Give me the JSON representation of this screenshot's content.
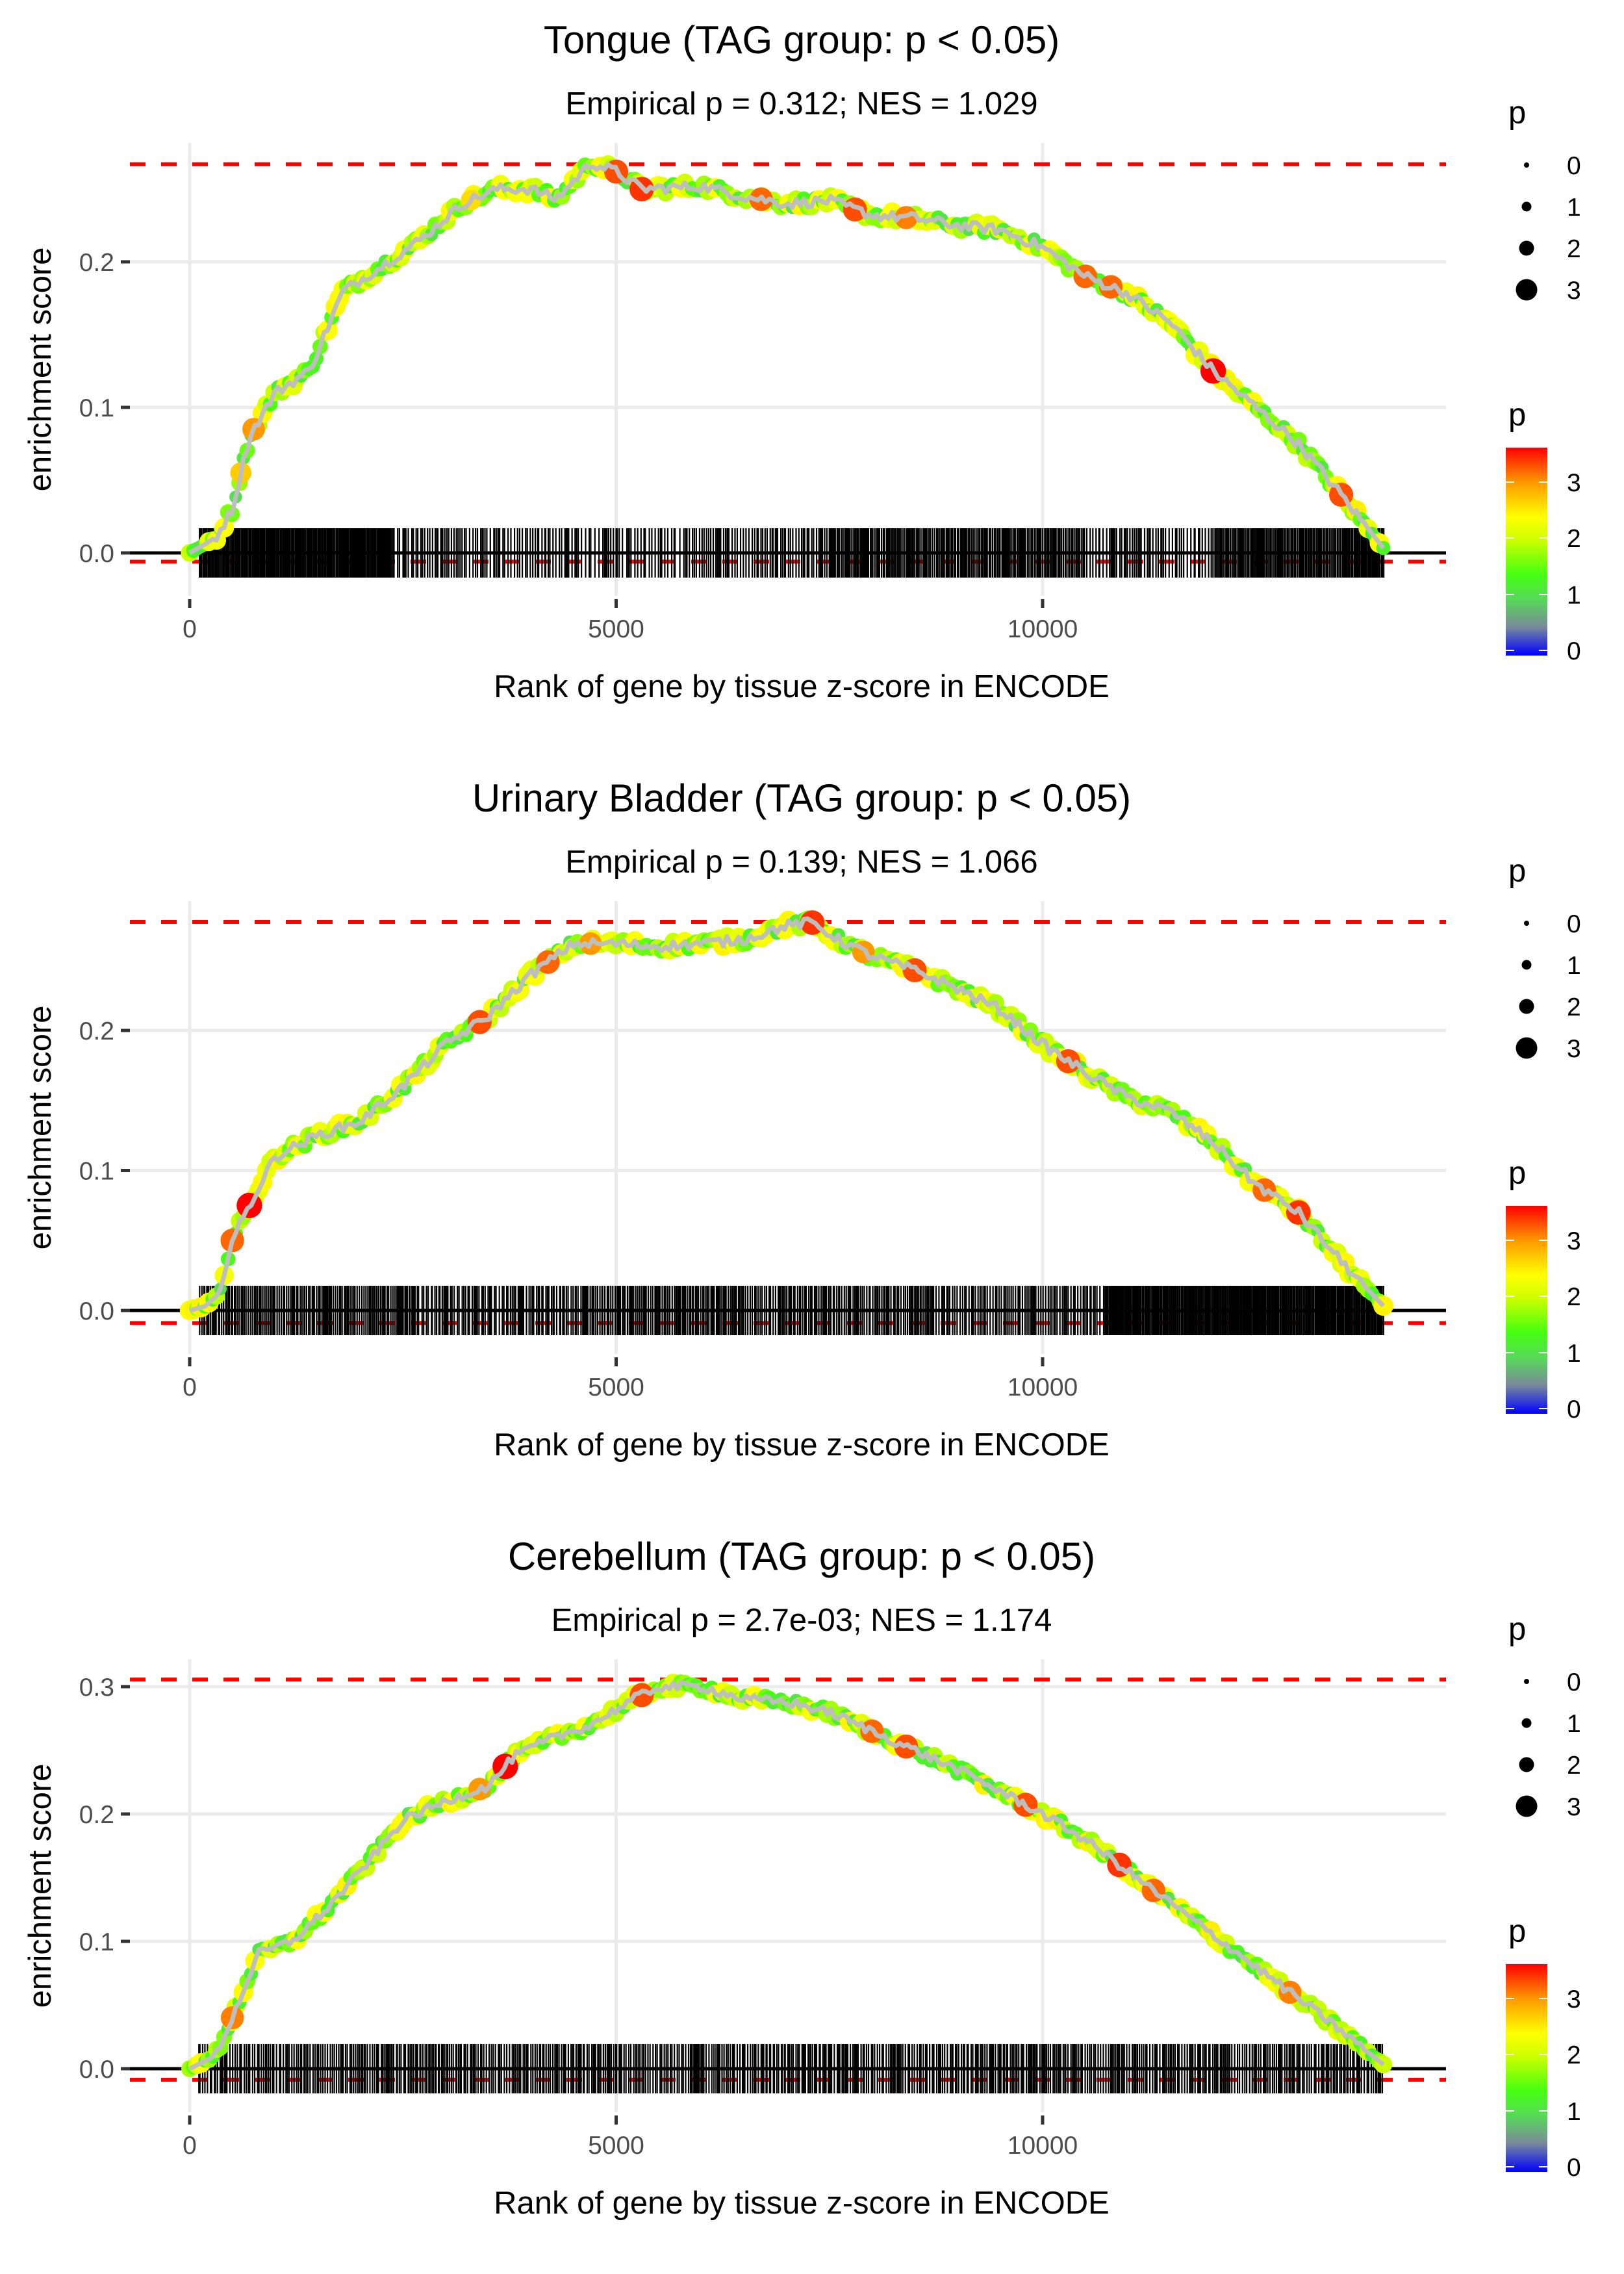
{
  "chart_data": [
    {
      "type": "line",
      "title": "Tongue (TAG group: p < 0.05)",
      "subtitle": "Empirical p = 0.312; NES = 1.029",
      "xlabel": "Rank of gene by tissue z-score in ENCODE",
      "ylabel": "enrichment score",
      "xlim": [
        -1800,
        14900
      ],
      "ylim": [
        -0.03,
        0.28
      ],
      "x_ticks": [
        0,
        5000,
        10000
      ],
      "x_tick_labels": [
        "0",
        "5000",
        "10000"
      ],
      "y_ticks": [
        0.0,
        0.1,
        0.2
      ],
      "y_tick_labels": [
        "0.0",
        "0.1",
        "0.2"
      ],
      "grid": true,
      "es_max": 0.267,
      "es_min": -0.006,
      "n_genes": 14000,
      "curve": [
        [
          0,
          0
        ],
        [
          300,
          0.01
        ],
        [
          500,
          0.03
        ],
        [
          700,
          0.08
        ],
        [
          1000,
          0.11
        ],
        [
          1400,
          0.125
        ],
        [
          1800,
          0.18
        ],
        [
          2200,
          0.195
        ],
        [
          2700,
          0.215
        ],
        [
          3200,
          0.24
        ],
        [
          3600,
          0.25
        ],
        [
          4000,
          0.25
        ],
        [
          4300,
          0.243
        ],
        [
          4700,
          0.268
        ],
        [
          5000,
          0.262
        ],
        [
          5300,
          0.25
        ],
        [
          6000,
          0.252
        ],
        [
          6500,
          0.245
        ],
        [
          7000,
          0.24
        ],
        [
          7500,
          0.242
        ],
        [
          8000,
          0.232
        ],
        [
          8500,
          0.23
        ],
        [
          9000,
          0.225
        ],
        [
          9500,
          0.222
        ],
        [
          10000,
          0.21
        ],
        [
          10500,
          0.19
        ],
        [
          11000,
          0.178
        ],
        [
          11500,
          0.158
        ],
        [
          12000,
          0.125
        ],
        [
          12500,
          0.1
        ],
        [
          13000,
          0.075
        ],
        [
          13500,
          0.04
        ],
        [
          14000,
          0.003
        ]
      ],
      "high_p_points": [
        [
          600,
          2.7
        ],
        [
          750,
          3.0
        ],
        [
          3300,
          2.6
        ],
        [
          5000,
          3.3
        ],
        [
          5300,
          3.4
        ],
        [
          6700,
          3.2
        ],
        [
          7800,
          3.3
        ],
        [
          8400,
          3.1
        ],
        [
          10500,
          3.2
        ],
        [
          10800,
          3.2
        ],
        [
          12000,
          3.6
        ],
        [
          13500,
          3.3
        ]
      ],
      "rug_density": [
        [
          100,
          2400,
          0.9
        ],
        [
          2400,
          4600,
          0.55
        ],
        [
          4600,
          5800,
          0.35
        ],
        [
          5800,
          7500,
          0.6
        ],
        [
          7500,
          10500,
          0.8
        ],
        [
          10500,
          12000,
          0.55
        ],
        [
          12000,
          14000,
          0.85
        ]
      ]
    },
    {
      "type": "line",
      "title": "Urinary Bladder (TAG group: p < 0.05)",
      "subtitle": "Empirical p = 0.139; NES = 1.066",
      "xlabel": "Rank of gene by tissue z-score in ENCODE",
      "ylabel": "enrichment score",
      "xlim": [
        -1800,
        14900
      ],
      "ylim": [
        -0.03,
        0.29
      ],
      "x_ticks": [
        0,
        5000,
        10000
      ],
      "x_tick_labels": [
        "0",
        "5000",
        "10000"
      ],
      "y_ticks": [
        0.0,
        0.1,
        0.2
      ],
      "y_tick_labels": [
        "0.0",
        "0.1",
        "0.2"
      ],
      "grid": true,
      "es_max": 0.2775,
      "es_min": -0.009,
      "n_genes": 14000,
      "curve": [
        [
          0,
          0
        ],
        [
          300,
          0.005
        ],
        [
          500,
          0.05
        ],
        [
          700,
          0.075
        ],
        [
          1000,
          0.11
        ],
        [
          1500,
          0.125
        ],
        [
          2000,
          0.135
        ],
        [
          2500,
          0.16
        ],
        [
          3000,
          0.19
        ],
        [
          3500,
          0.21
        ],
        [
          4000,
          0.24
        ],
        [
          4500,
          0.262
        ],
        [
          5000,
          0.262
        ],
        [
          5500,
          0.26
        ],
        [
          6000,
          0.262
        ],
        [
          6500,
          0.265
        ],
        [
          7000,
          0.275
        ],
        [
          7300,
          0.277
        ],
        [
          7600,
          0.265
        ],
        [
          8000,
          0.253
        ],
        [
          8500,
          0.243
        ],
        [
          9000,
          0.23
        ],
        [
          9500,
          0.215
        ],
        [
          10000,
          0.19
        ],
        [
          10500,
          0.17
        ],
        [
          11000,
          0.152
        ],
        [
          11500,
          0.142
        ],
        [
          12000,
          0.12
        ],
        [
          12500,
          0.09
        ],
        [
          13000,
          0.07
        ],
        [
          13500,
          0.035
        ],
        [
          14000,
          0.003
        ]
      ],
      "high_p_points": [
        [
          500,
          3.2
        ],
        [
          700,
          3.6
        ],
        [
          3400,
          3.3
        ],
        [
          4200,
          3.2
        ],
        [
          4700,
          3.0
        ],
        [
          7300,
          3.4
        ],
        [
          7900,
          3.0
        ],
        [
          8500,
          3.3
        ],
        [
          10300,
          3.3
        ],
        [
          12600,
          3.2
        ],
        [
          13000,
          3.4
        ]
      ],
      "rug_density": [
        [
          100,
          2700,
          0.75
        ],
        [
          2700,
          4600,
          0.6
        ],
        [
          4600,
          6500,
          0.75
        ],
        [
          6500,
          8200,
          0.7
        ],
        [
          8200,
          10700,
          0.65
        ],
        [
          10700,
          14000,
          0.9
        ]
      ]
    },
    {
      "type": "line",
      "title": "Cerebellum (TAG group: p < 0.05)",
      "subtitle": "Empirical p = 2.7e-03; NES = 1.174",
      "xlabel": "Rank of gene by tissue z-score in ENCODE",
      "ylabel": "enrichment score",
      "xlim": [
        -1800,
        14900
      ],
      "ylim": [
        -0.03,
        0.32
      ],
      "x_ticks": [
        0,
        5000,
        10000
      ],
      "x_tick_labels": [
        "0",
        "5000",
        "10000"
      ],
      "y_ticks": [
        0.0,
        0.1,
        0.2,
        0.3
      ],
      "y_tick_labels": [
        "0.0",
        "0.1",
        "0.2",
        "0.3"
      ],
      "grid": true,
      "es_max": 0.3056,
      "es_min": -0.0087,
      "n_genes": 14000,
      "curve": [
        [
          0,
          0
        ],
        [
          300,
          0.01
        ],
        [
          500,
          0.04
        ],
        [
          800,
          0.09
        ],
        [
          1200,
          0.1
        ],
        [
          1600,
          0.125
        ],
        [
          2000,
          0.155
        ],
        [
          2500,
          0.195
        ],
        [
          3000,
          0.21
        ],
        [
          3500,
          0.222
        ],
        [
          3800,
          0.245
        ],
        [
          4200,
          0.258
        ],
        [
          4700,
          0.27
        ],
        [
          5200,
          0.29
        ],
        [
          5500,
          0.3
        ],
        [
          6000,
          0.3
        ],
        [
          6500,
          0.29
        ],
        [
          7000,
          0.288
        ],
        [
          7500,
          0.28
        ],
        [
          8000,
          0.265
        ],
        [
          8500,
          0.25
        ],
        [
          9000,
          0.235
        ],
        [
          9500,
          0.218
        ],
        [
          10000,
          0.2
        ],
        [
          10500,
          0.18
        ],
        [
          11000,
          0.155
        ],
        [
          11500,
          0.13
        ],
        [
          12000,
          0.105
        ],
        [
          12500,
          0.08
        ],
        [
          13000,
          0.055
        ],
        [
          13500,
          0.03
        ],
        [
          14000,
          0.003
        ]
      ],
      "high_p_points": [
        [
          500,
          3.1
        ],
        [
          3700,
          3.6
        ],
        [
          3400,
          3.0
        ],
        [
          5300,
          3.3
        ],
        [
          8000,
          3.2
        ],
        [
          8400,
          3.3
        ],
        [
          9800,
          3.3
        ],
        [
          10900,
          3.4
        ],
        [
          11300,
          3.2
        ],
        [
          12900,
          3.1
        ]
      ],
      "rug_density": [
        [
          100,
          14000,
          0.65
        ]
      ]
    }
  ],
  "legends": {
    "size_title": "p",
    "size_labels": [
      "0",
      "1",
      "2",
      "3"
    ],
    "color_title": "p",
    "color_labels": [
      "0",
      "1",
      "2",
      "3"
    ],
    "color_max": 3.6,
    "color_stops": [
      {
        "v": 0.0,
        "c": "#0000ff"
      },
      {
        "v": 0.5,
        "c": "#7a8a9a"
      },
      {
        "v": 1.0,
        "c": "#55dd55"
      },
      {
        "v": 1.4,
        "c": "#44ff11"
      },
      {
        "v": 2.0,
        "c": "#ccff00"
      },
      {
        "v": 2.4,
        "c": "#ffff00"
      },
      {
        "v": 3.0,
        "c": "#ff9900"
      },
      {
        "v": 3.6,
        "c": "#ff0000"
      }
    ]
  },
  "colors": {
    "es_line": "#bebebe",
    "dashed": "#ff0000",
    "grid": "#ebebeb",
    "zero_line": "#000000",
    "rug": "#000000"
  }
}
